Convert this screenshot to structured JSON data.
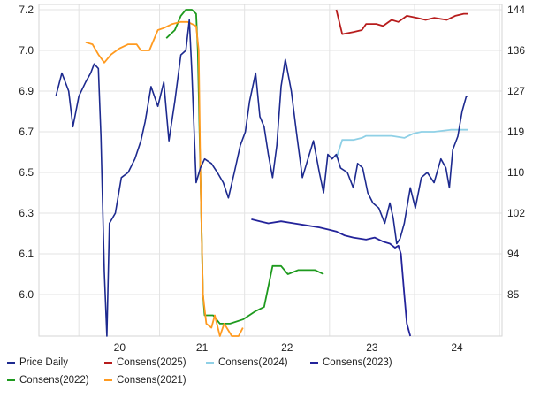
{
  "chart_data": {
    "type": "line",
    "x_ticks": [
      "20",
      "21",
      "22",
      "23",
      "24"
    ],
    "left_axis": {
      "ticks": [
        6.0,
        6.1,
        6.3,
        6.5,
        6.7,
        6.9,
        7.0,
        7.2
      ],
      "range": [
        5.9,
        7.2
      ]
    },
    "right_axis": {
      "ticks": [
        85,
        94,
        102,
        110,
        119,
        127,
        136,
        144
      ],
      "range": [
        77,
        144
      ]
    },
    "series": [
      {
        "name": "Price Daily",
        "axis": "right",
        "color": "#1d2a8f",
        "points": [
          [
            19.35,
            126
          ],
          [
            19.42,
            131
          ],
          [
            19.5,
            127
          ],
          [
            19.55,
            120
          ],
          [
            19.62,
            126
          ],
          [
            19.7,
            129
          ],
          [
            19.76,
            131
          ],
          [
            19.8,
            133
          ],
          [
            19.85,
            132
          ],
          [
            19.88,
            118
          ],
          [
            19.92,
            90
          ],
          [
            19.95,
            77
          ],
          [
            19.98,
            100
          ],
          [
            20.05,
            102
          ],
          [
            20.12,
            109
          ],
          [
            20.2,
            110
          ],
          [
            20.28,
            113
          ],
          [
            20.35,
            117
          ],
          [
            20.4,
            121
          ],
          [
            20.47,
            128
          ],
          [
            20.55,
            124
          ],
          [
            20.62,
            129
          ],
          [
            20.68,
            117
          ],
          [
            20.75,
            125
          ],
          [
            20.82,
            135
          ],
          [
            20.88,
            136
          ],
          [
            20.92,
            142
          ],
          [
            20.95,
            131
          ],
          [
            21.0,
            108
          ],
          [
            21.05,
            111
          ],
          [
            21.1,
            113
          ],
          [
            21.18,
            112
          ],
          [
            21.25,
            110
          ],
          [
            21.32,
            108
          ],
          [
            21.38,
            105
          ],
          [
            21.45,
            110
          ],
          [
            21.52,
            116
          ],
          [
            21.58,
            119
          ],
          [
            21.63,
            125
          ],
          [
            21.7,
            131
          ],
          [
            21.75,
            122
          ],
          [
            21.8,
            120
          ],
          [
            21.85,
            114
          ],
          [
            21.9,
            109
          ],
          [
            21.95,
            116
          ],
          [
            22.0,
            128
          ],
          [
            22.05,
            134
          ],
          [
            22.12,
            127
          ],
          [
            22.18,
            119
          ],
          [
            22.25,
            109
          ],
          [
            22.3,
            112
          ],
          [
            22.38,
            117
          ],
          [
            22.45,
            110
          ],
          [
            22.5,
            106
          ],
          [
            22.55,
            114
          ],
          [
            22.6,
            113
          ],
          [
            22.65,
            114
          ],
          [
            22.7,
            111
          ],
          [
            22.78,
            110
          ],
          [
            22.85,
            107
          ],
          [
            22.9,
            112
          ],
          [
            22.96,
            111
          ],
          [
            23.02,
            106
          ],
          [
            23.08,
            104
          ],
          [
            23.15,
            103
          ],
          [
            23.22,
            100
          ],
          [
            23.28,
            104
          ],
          [
            23.32,
            101
          ],
          [
            23.36,
            96
          ],
          [
            23.4,
            97
          ],
          [
            23.45,
            100
          ],
          [
            23.52,
            107
          ],
          [
            23.58,
            103
          ],
          [
            23.65,
            109
          ],
          [
            23.72,
            110
          ],
          [
            23.8,
            108
          ],
          [
            23.88,
            113
          ],
          [
            23.94,
            111
          ],
          [
            23.98,
            107
          ],
          [
            24.02,
            115
          ],
          [
            24.08,
            118
          ],
          [
            24.13,
            123
          ],
          [
            24.18,
            126
          ],
          [
            24.2,
            126
          ]
        ]
      },
      {
        "name": "Consens(2025)",
        "axis": "left",
        "color": "#b71c1c",
        "points": [
          [
            22.65,
            7.2
          ],
          [
            22.72,
            7.08
          ],
          [
            22.85,
            7.09
          ],
          [
            22.95,
            7.1
          ],
          [
            23.0,
            7.13
          ],
          [
            23.12,
            7.13
          ],
          [
            23.2,
            7.12
          ],
          [
            23.3,
            7.15
          ],
          [
            23.38,
            7.14
          ],
          [
            23.48,
            7.17
          ],
          [
            23.6,
            7.16
          ],
          [
            23.7,
            7.15
          ],
          [
            23.8,
            7.16
          ],
          [
            23.95,
            7.15
          ],
          [
            24.05,
            7.17
          ],
          [
            24.15,
            7.18
          ],
          [
            24.2,
            7.18
          ]
        ]
      },
      {
        "name": "Consens(2024)",
        "axis": "left",
        "color": "#8fd0e6",
        "points": [
          [
            22.65,
            6.57
          ],
          [
            22.72,
            6.66
          ],
          [
            22.85,
            6.66
          ],
          [
            22.95,
            6.67
          ],
          [
            23.0,
            6.68
          ],
          [
            23.15,
            6.68
          ],
          [
            23.3,
            6.68
          ],
          [
            23.45,
            6.67
          ],
          [
            23.55,
            6.69
          ],
          [
            23.65,
            6.7
          ],
          [
            23.8,
            6.7
          ],
          [
            24.0,
            6.71
          ],
          [
            24.2,
            6.71
          ]
        ]
      },
      {
        "name": "Consens(2023)",
        "axis": "left",
        "color": "#23239a",
        "points": [
          [
            21.65,
            6.27
          ],
          [
            21.75,
            6.26
          ],
          [
            21.85,
            6.25
          ],
          [
            22.0,
            6.26
          ],
          [
            22.15,
            6.25
          ],
          [
            22.3,
            6.24
          ],
          [
            22.45,
            6.23
          ],
          [
            22.55,
            6.22
          ],
          [
            22.65,
            6.21
          ],
          [
            22.75,
            6.19
          ],
          [
            22.85,
            6.18
          ],
          [
            23.0,
            6.17
          ],
          [
            23.1,
            6.18
          ],
          [
            23.2,
            6.16
          ],
          [
            23.28,
            6.15
          ],
          [
            23.34,
            6.13
          ],
          [
            23.38,
            6.14
          ],
          [
            23.41,
            6.1
          ],
          [
            23.45,
            6.0
          ],
          [
            23.48,
            5.93
          ],
          [
            23.52,
            5.9
          ]
        ]
      },
      {
        "name": "Consens(2022)",
        "axis": "left",
        "color": "#1e9a1e",
        "points": [
          [
            20.65,
            7.06
          ],
          [
            20.75,
            7.1
          ],
          [
            20.82,
            7.17
          ],
          [
            20.88,
            7.2
          ],
          [
            20.95,
            7.2
          ],
          [
            21.0,
            7.18
          ],
          [
            21.02,
            7.0
          ],
          [
            21.05,
            6.5
          ],
          [
            21.08,
            6.0
          ],
          [
            21.1,
            5.95
          ],
          [
            21.2,
            5.95
          ],
          [
            21.28,
            5.93
          ],
          [
            21.4,
            5.93
          ],
          [
            21.55,
            5.94
          ],
          [
            21.7,
            5.96
          ],
          [
            21.8,
            5.97
          ],
          [
            21.9,
            6.07
          ],
          [
            22.0,
            6.07
          ],
          [
            22.08,
            6.05
          ],
          [
            22.2,
            6.06
          ],
          [
            22.3,
            6.06
          ],
          [
            22.4,
            6.06
          ],
          [
            22.5,
            6.05
          ]
        ]
      },
      {
        "name": "Consens(2021)",
        "axis": "left",
        "color": "#ff9a1f",
        "points": [
          [
            19.7,
            7.04
          ],
          [
            19.78,
            7.03
          ],
          [
            19.85,
            6.99
          ],
          [
            19.92,
            6.97
          ],
          [
            20.0,
            6.99
          ],
          [
            20.1,
            7.01
          ],
          [
            20.2,
            7.03
          ],
          [
            20.3,
            7.03
          ],
          [
            20.35,
            7.0
          ],
          [
            20.45,
            7.0
          ],
          [
            20.55,
            7.1
          ],
          [
            20.62,
            7.11
          ],
          [
            20.72,
            7.13
          ],
          [
            20.82,
            7.14
          ],
          [
            20.9,
            7.14
          ],
          [
            20.95,
            7.13
          ],
          [
            21.0,
            7.12
          ],
          [
            21.03,
            7.0
          ],
          [
            21.05,
            6.5
          ],
          [
            21.08,
            6.0
          ],
          [
            21.12,
            5.93
          ],
          [
            21.18,
            5.92
          ],
          [
            21.22,
            5.95
          ],
          [
            21.28,
            5.89
          ],
          [
            21.33,
            5.93
          ],
          [
            21.42,
            5.88
          ],
          [
            21.5,
            5.9
          ],
          [
            21.55,
            5.92
          ]
        ]
      }
    ],
    "legend": {
      "placement": "bottom"
    }
  }
}
